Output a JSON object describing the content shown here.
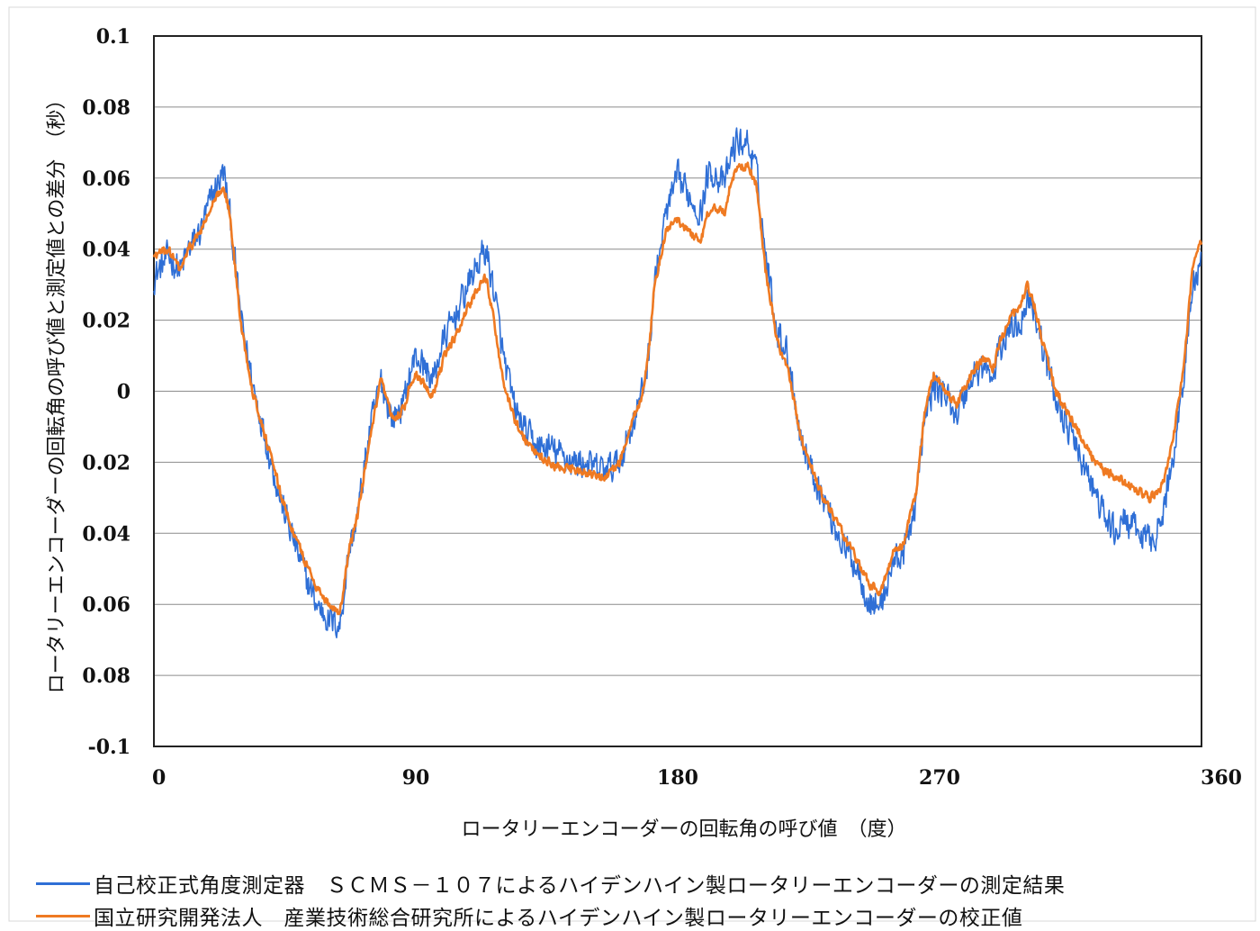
{
  "chart_data": {
    "type": "line",
    "xlabel": "ロータリーエンコーダーの回転角の呼び値　（度）",
    "ylabel": "ロータリーエンコーダーの回転角の呼び値と測定値との差分　（秒）",
    "xlim": [
      0,
      360
    ],
    "ylim": [
      -0.1,
      0.1
    ],
    "x_ticks": [
      "0",
      "90",
      "180",
      "270",
      "360"
    ],
    "y_ticks": [
      "0.1",
      "0.08",
      "0.06",
      "0.04",
      "0.02",
      "0",
      "0.02",
      "0.04",
      "0.06",
      "0.08",
      "-0.1"
    ],
    "grid": "horizontal",
    "legend_position": "bottom",
    "series": [
      {
        "name": "自己校正式角度測定器　ＳＣＭＳ－１０７によるハイデンハイン製ロータリーエンコーダーの測定結果",
        "color": "#2f6fd6",
        "noise": 0.006,
        "x": [
          0,
          5,
          9,
          12,
          16,
          20,
          24,
          26,
          30,
          34,
          38,
          44,
          48,
          52,
          56,
          60,
          64,
          67,
          70,
          74,
          78,
          82,
          86,
          88,
          90,
          92,
          96,
          98,
          100,
          104,
          108,
          112,
          114,
          117,
          120,
          124,
          128,
          132,
          136,
          140,
          144,
          148,
          152,
          156,
          160,
          164,
          168,
          170,
          172,
          176,
          180,
          184,
          188,
          190,
          192,
          196,
          198,
          200,
          204,
          207,
          210,
          214,
          218,
          220,
          222,
          226,
          230,
          234,
          238,
          242,
          246,
          250,
          254,
          258,
          262,
          265,
          268,
          272,
          274,
          276,
          278,
          282,
          286,
          288,
          290,
          294,
          298,
          300,
          302,
          306,
          310,
          314,
          318,
          322,
          326,
          330,
          334,
          338,
          342,
          346,
          350,
          354,
          357,
          360
        ],
        "values": [
          0.032,
          0.038,
          0.034,
          0.04,
          0.045,
          0.055,
          0.062,
          0.05,
          0.02,
          0.002,
          -0.012,
          -0.032,
          -0.042,
          -0.052,
          -0.06,
          -0.064,
          -0.066,
          -0.045,
          -0.035,
          -0.012,
          0.003,
          -0.008,
          -0.003,
          0.005,
          0.01,
          0.008,
          0.003,
          0.01,
          0.015,
          0.022,
          0.03,
          0.037,
          0.04,
          0.028,
          0.01,
          -0.005,
          -0.012,
          -0.016,
          -0.016,
          -0.018,
          -0.02,
          -0.02,
          -0.022,
          -0.022,
          -0.02,
          -0.01,
          0.0,
          0.01,
          0.03,
          0.05,
          0.06,
          0.055,
          0.05,
          0.06,
          0.062,
          0.058,
          0.065,
          0.07,
          0.07,
          0.062,
          0.04,
          0.018,
          0.01,
          0.0,
          -0.012,
          -0.022,
          -0.03,
          -0.038,
          -0.045,
          -0.05,
          -0.06,
          -0.06,
          -0.048,
          -0.045,
          -0.03,
          -0.008,
          0.002,
          -0.001,
          -0.004,
          -0.006,
          -0.002,
          0.005,
          0.007,
          0.002,
          0.01,
          0.018,
          0.02,
          0.026,
          0.025,
          0.01,
          -0.002,
          -0.01,
          -0.018,
          -0.026,
          -0.034,
          -0.04,
          -0.036,
          -0.04,
          -0.042,
          -0.038,
          -0.02,
          0.005,
          0.03,
          0.036
        ]
      },
      {
        "name": "国立研究開発法人　産業技術総合研究所によるハイデンハイン製ロータリーエンコーダーの校正値",
        "color": "#ef7a22",
        "noise": 0.0018,
        "x": [
          0,
          5,
          9,
          12,
          16,
          20,
          24,
          26,
          30,
          34,
          38,
          44,
          48,
          52,
          56,
          60,
          64,
          67,
          70,
          74,
          78,
          82,
          86,
          88,
          90,
          92,
          96,
          98,
          100,
          104,
          108,
          112,
          114,
          117,
          120,
          124,
          128,
          132,
          136,
          140,
          144,
          148,
          152,
          156,
          160,
          164,
          168,
          170,
          172,
          176,
          180,
          184,
          188,
          190,
          192,
          196,
          198,
          200,
          204,
          207,
          210,
          214,
          218,
          220,
          222,
          226,
          230,
          234,
          238,
          242,
          246,
          250,
          254,
          258,
          262,
          265,
          268,
          272,
          274,
          276,
          278,
          282,
          286,
          288,
          290,
          294,
          298,
          300,
          302,
          306,
          310,
          314,
          318,
          322,
          326,
          330,
          334,
          338,
          342,
          346,
          350,
          354,
          357,
          360
        ],
        "values": [
          0.038,
          0.04,
          0.034,
          0.04,
          0.045,
          0.052,
          0.058,
          0.05,
          0.018,
          0.0,
          -0.012,
          -0.03,
          -0.04,
          -0.048,
          -0.055,
          -0.06,
          -0.062,
          -0.045,
          -0.035,
          -0.015,
          0.003,
          -0.008,
          -0.005,
          0.002,
          0.005,
          0.003,
          -0.001,
          0.005,
          0.01,
          0.016,
          0.024,
          0.03,
          0.032,
          0.02,
          0.002,
          -0.008,
          -0.014,
          -0.018,
          -0.02,
          -0.022,
          -0.022,
          -0.023,
          -0.024,
          -0.024,
          -0.02,
          -0.01,
          0.0,
          0.01,
          0.03,
          0.045,
          0.048,
          0.045,
          0.042,
          0.05,
          0.052,
          0.05,
          0.058,
          0.062,
          0.064,
          0.058,
          0.035,
          0.015,
          0.005,
          -0.003,
          -0.012,
          -0.022,
          -0.03,
          -0.036,
          -0.042,
          -0.048,
          -0.055,
          -0.056,
          -0.046,
          -0.042,
          -0.028,
          -0.005,
          0.005,
          0.0,
          -0.002,
          -0.004,
          0.0,
          0.006,
          0.01,
          0.005,
          0.012,
          0.02,
          0.024,
          0.03,
          0.026,
          0.012,
          0.0,
          -0.006,
          -0.012,
          -0.018,
          -0.022,
          -0.024,
          -0.026,
          -0.028,
          -0.03,
          -0.028,
          -0.015,
          0.008,
          0.035,
          0.042
        ]
      }
    ]
  }
}
